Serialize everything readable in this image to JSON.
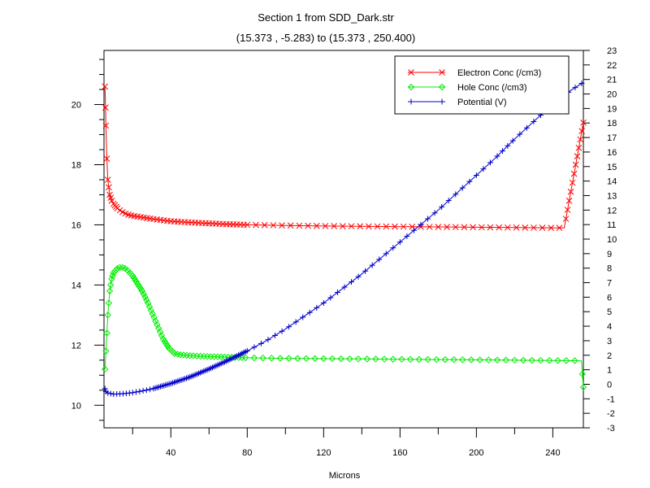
{
  "chart_data": {
    "type": "line",
    "title": "Section 1 from SDD_Dark.str",
    "subtitle": "(15.373 , -5.283) to (15.373 , 250.400)",
    "xlabel": "Microns",
    "xlim": [
      5,
      256
    ],
    "x_ticks": [
      40,
      80,
      120,
      160,
      200,
      240
    ],
    "y_left": {
      "ylim": [
        9.25,
        21.8
      ],
      "ticks": [
        10,
        12,
        14,
        16,
        18,
        20
      ]
    },
    "y_right": {
      "ylim": [
        -3,
        23
      ],
      "ticks": [
        -3,
        -2,
        -1,
        0,
        1,
        2,
        3,
        4,
        5,
        6,
        7,
        8,
        9,
        10,
        11,
        12,
        13,
        14,
        15,
        16,
        17,
        18,
        19,
        20,
        21,
        22,
        23
      ]
    },
    "legend_position": "top-right",
    "series": [
      {
        "name": "Electron Conc (/cm3)",
        "axis": "left",
        "color": "#ff0000",
        "marker": "x",
        "x": [
          5.5,
          5.8,
          6,
          6.5,
          7,
          8,
          9,
          10,
          12,
          14,
          17,
          20,
          25,
          30,
          40,
          50,
          60,
          70,
          80,
          100,
          120,
          140,
          160,
          180,
          200,
          220,
          240,
          246,
          252,
          256
        ],
        "y": [
          20.6,
          19.9,
          19.3,
          18.2,
          17.5,
          17.0,
          16.8,
          16.7,
          16.55,
          16.45,
          16.35,
          16.3,
          16.25,
          16.2,
          16.12,
          16.08,
          16.05,
          16.02,
          16.0,
          15.98,
          15.96,
          15.95,
          15.94,
          15.93,
          15.92,
          15.91,
          15.9,
          15.9,
          18.0,
          19.4
        ]
      },
      {
        "name": "Hole Conc (/cm3)",
        "axis": "left",
        "color": "#00ee00",
        "marker": "diamond",
        "x": [
          5.5,
          6,
          7,
          8,
          9,
          10,
          12,
          14,
          16,
          18,
          20,
          22,
          25,
          28,
          32,
          36,
          39,
          42,
          45,
          50,
          60,
          70,
          80,
          100,
          120,
          140,
          160,
          180,
          200,
          220,
          240,
          255,
          256
        ],
        "y": [
          11.2,
          11.8,
          13.0,
          13.8,
          14.2,
          14.4,
          14.55,
          14.6,
          14.55,
          14.45,
          14.3,
          14.1,
          13.8,
          13.4,
          12.8,
          12.2,
          11.9,
          11.72,
          11.68,
          11.65,
          11.62,
          11.6,
          11.58,
          11.56,
          11.55,
          11.54,
          11.53,
          11.52,
          11.51,
          11.5,
          11.49,
          11.48,
          10.6
        ]
      },
      {
        "name": "Potential (V)",
        "axis": "right",
        "color": "#0000cc",
        "marker": "plus",
        "x": [
          5.5,
          6,
          7,
          10,
          15,
          20,
          30,
          40,
          50,
          60,
          70,
          80,
          90,
          100,
          110,
          120,
          130,
          140,
          150,
          160,
          170,
          180,
          190,
          200,
          210,
          220,
          230,
          240,
          250,
          256
        ],
        "y": [
          -0.3,
          -0.5,
          -0.6,
          -0.68,
          -0.65,
          -0.58,
          -0.33,
          0.05,
          0.5,
          1.05,
          1.65,
          2.3,
          3.0,
          3.8,
          4.7,
          5.6,
          6.6,
          7.6,
          8.7,
          9.8,
          10.9,
          12.0,
          13.2,
          14.4,
          15.6,
          16.9,
          18.1,
          19.3,
          20.3,
          20.8
        ]
      }
    ]
  }
}
